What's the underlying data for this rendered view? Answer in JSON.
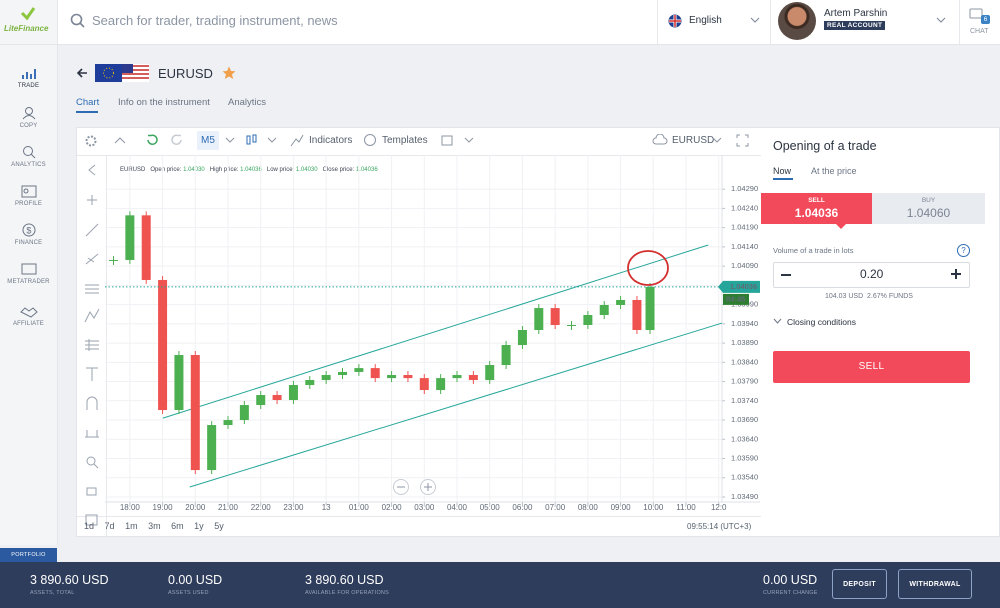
{
  "header": {
    "logo": "LiteFinance",
    "search_placeholder": "Search for trader, trading instrument, news",
    "language": "English",
    "user_name": "Artem Parshin",
    "account_type": "REAL ACCOUNT",
    "chat_badge": 6,
    "chat": "CHAT"
  },
  "sidebar": [
    "TRADE",
    "COPY",
    "ANALYTICS",
    "PROFILE",
    "FINANCE",
    "METATRADER",
    "AFFILIATE"
  ],
  "instrument": {
    "symbol": "EURUSD",
    "tabs": [
      "Chart",
      "Info on the instrument",
      "Analytics"
    ]
  },
  "toolbar": {
    "timeframe": "M5",
    "indicators": "Indicators",
    "templates": "Templates",
    "symbol": "EURUSD"
  },
  "periods": [
    "1d",
    "7d",
    "1m",
    "3m",
    "6m",
    "1y",
    "5y"
  ],
  "clock": "09:55:14 (UTC+3)",
  "timer": "04:45",
  "chart_data": {
    "type": "candlestick",
    "ohlc_legend": {
      "symbol": "EURUSD",
      "open_label": "Open price:",
      "open": "1.04030",
      "high_label": "High price:",
      "high": "1.04036",
      "low_label": "Low price:",
      "low": "1.04030",
      "close_label": "Close price:",
      "close": "1.04036"
    },
    "x": [
      -0.5,
      0,
      0.5,
      1,
      1.5,
      2,
      2.5,
      3,
      3.5,
      4,
      4.5,
      5,
      5.5,
      6,
      6.5,
      7,
      7.5,
      8,
      8.5,
      9,
      9.5,
      10,
      10.5,
      11,
      11.5,
      12,
      12.5,
      13,
      13.5,
      14,
      14.5,
      15,
      15.5,
      15.9
    ],
    "series": [
      {
        "color": "#4caf50",
        "down_color": "#ef5350",
        "values": [
          1.04106,
          1.04222,
          1.04054,
          1.03716,
          1.03859,
          1.0356,
          1.03677,
          1.0369,
          1.03729,
          1.03755,
          1.03742,
          1.03781,
          1.03794,
          1.03807,
          1.03815,
          1.03825,
          1.03799,
          1.03807,
          1.03799,
          1.03768,
          1.03799,
          1.03807,
          1.03794,
          1.03833,
          1.03885,
          1.03924,
          1.03981,
          1.03937,
          1.03937,
          1.03963,
          1.03989,
          1.04002,
          1.03924,
          1.04036
        ]
      }
    ],
    "current_price": 1.04036,
    "price_color": "#26a69a",
    "channel": [
      {
        "x": [
          1.01,
          17.68
        ],
        "y": [
          1.03695,
          1.04145
        ]
      },
      {
        "x": [
          1.83,
          18.1
        ],
        "y": [
          1.03516,
          1.03942
        ]
      }
    ],
    "channel_color": "#26a69a",
    "xlim": [
      -0.76,
      18.1
    ],
    "xticks": [
      {
        "value": 0,
        "label": "18:00"
      },
      {
        "value": 1,
        "label": "19:00"
      },
      {
        "value": 2,
        "label": "20:00"
      },
      {
        "value": 3,
        "label": "21:00"
      },
      {
        "value": 4,
        "label": "22:00"
      },
      {
        "value": 5,
        "label": "23:00"
      },
      {
        "value": 6,
        "label": "13"
      },
      {
        "value": 7,
        "label": "01:00"
      },
      {
        "value": 8,
        "label": "02:00"
      },
      {
        "value": 9,
        "label": "03:00"
      },
      {
        "value": 10,
        "label": "04:00"
      },
      {
        "value": 11,
        "label": "05:00"
      },
      {
        "value": 12,
        "label": "06:00"
      },
      {
        "value": 13,
        "label": "07:00"
      },
      {
        "value": 14,
        "label": "08:00"
      },
      {
        "value": 15,
        "label": "09:00"
      },
      {
        "value": 16,
        "label": "10:00"
      },
      {
        "value": 17,
        "label": "11:00"
      },
      {
        "value": 18,
        "label": "12:0"
      }
    ],
    "ylim": [
      1.03477,
      1.04371
    ],
    "yticks": [
      {
        "value": 1.0349,
        "label": "1.03490"
      },
      {
        "value": 1.0354,
        "label": "1.03540"
      },
      {
        "value": 1.0359,
        "label": "1.03590"
      },
      {
        "value": 1.0364,
        "label": "1.03640"
      },
      {
        "value": 1.0369,
        "label": "1.03690"
      },
      {
        "value": 1.0374,
        "label": "1.03740"
      },
      {
        "value": 1.0379,
        "label": "1.03790"
      },
      {
        "value": 1.0384,
        "label": "1.03840"
      },
      {
        "value": 1.0389,
        "label": "1.03890"
      },
      {
        "value": 1.0394,
        "label": "1.03940"
      },
      {
        "value": 1.0399,
        "label": "1.03990"
      },
      {
        "value": 1.0404,
        "label": "1.04040"
      },
      {
        "value": 1.0409,
        "label": "1.04090"
      },
      {
        "value": 1.0414,
        "label": "1.04140"
      },
      {
        "value": 1.0419,
        "label": "1.04190"
      },
      {
        "value": 1.0424,
        "label": "1.04240"
      },
      {
        "value": 1.0429,
        "label": "1.04290"
      }
    ],
    "grid": true
  },
  "trade_panel": {
    "title": "Opening of a trade",
    "tabs": [
      "Now",
      "At the price"
    ],
    "sell_label": "SELL",
    "sell_price": "1.04036",
    "buy_label": "BUY",
    "buy_price": "1.04060",
    "volume_label": "Volume of a trade in lots",
    "volume": "0.20",
    "cost": "104.03 USD",
    "funds": "2.67% FUNDS",
    "closing": "Closing conditions",
    "button": "SELL"
  },
  "footer": {
    "portfolio": "PORTFOLIO",
    "stats": [
      {
        "value": "3 890.60 USD",
        "label": "ASSETS, TOTAL"
      },
      {
        "value": "0.00 USD",
        "label": "ASSETS USED"
      },
      {
        "value": "3 890.60 USD",
        "label": "AVAILABLE FOR OPERATIONS"
      }
    ],
    "current_change": {
      "value": "0.00 USD",
      "label": "CURRENT CHANGE"
    },
    "deposit": "DEPOSIT",
    "withdrawal": "WITHDRAWAL"
  }
}
